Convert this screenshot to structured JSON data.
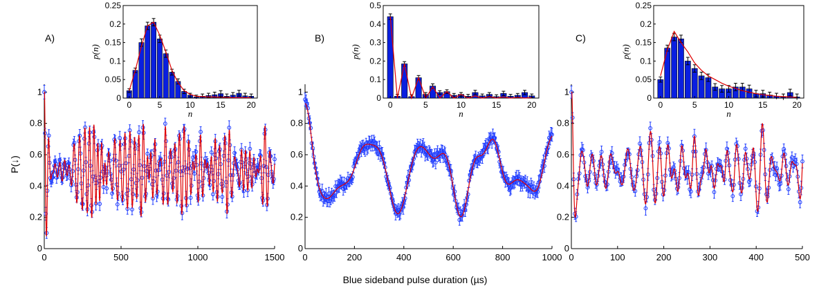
{
  "chart_data": [
    {
      "panel": "A)",
      "type": "scatter",
      "xlabel": "Blue sideband pulse duration (µs)",
      "ylabel": "P(↓)",
      "xlim": [
        0,
        1500
      ],
      "ylim": [
        0,
        1.05
      ],
      "xticks": [
        "0",
        "500",
        "1000",
        "1500"
      ],
      "yticks": [
        "0",
        "0.2",
        "0.4",
        "0.6",
        "0.8",
        "1"
      ],
      "colors": {
        "points": "#1f3cff",
        "fit": "#e00000"
      },
      "rabi": {
        "amps": [
          0.02,
          0.075,
          0.15,
          0.195,
          0.2,
          0.16,
          0.12,
          0.07,
          0.045,
          0.02,
          0.01,
          0.005,
          0.004,
          0.003,
          0.003,
          0.002,
          0.002,
          0.001,
          0.001,
          0.001,
          0.001
        ],
        "omega0": 0.096,
        "tmax": 1500,
        "npoints": 300,
        "mod": 0.07,
        "modPeriod": 720
      },
      "inset": {
        "type": "bar",
        "xlabel": "n",
        "ylabel": "p(n)",
        "xlim": [
          -1,
          21
        ],
        "ylim": [
          0,
          0.25
        ],
        "xticks": [
          "0",
          "5",
          "10",
          "15",
          "20"
        ],
        "yticks": [
          "0",
          "0.05",
          "0.1",
          "0.15",
          "0.2",
          "0.25"
        ],
        "values": [
          0.02,
          0.075,
          0.15,
          0.195,
          0.205,
          0.16,
          0.12,
          0.07,
          0.045,
          0.018,
          0.008,
          0.003,
          0.005,
          0.007,
          0.009,
          0.012,
          0.005,
          0.008,
          0.013,
          0.006,
          0.005
        ],
        "errors": [
          0.005,
          0.006,
          0.01,
          0.01,
          0.01,
          0.01,
          0.01,
          0.008,
          0.007,
          0.006,
          0.005,
          0.005,
          0.006,
          0.006,
          0.007,
          0.008,
          0.006,
          0.007,
          0.008,
          0.007,
          0.006
        ],
        "fit": [
          0.02,
          0.075,
          0.14,
          0.195,
          0.205,
          0.17,
          0.125,
          0.075,
          0.042,
          0.02,
          0.01,
          0.005,
          0.004,
          0.003,
          0.003,
          0.002,
          0.002,
          0.001,
          0.001,
          0.001,
          0.001
        ],
        "colors": {
          "bar": "#0a1fe0",
          "fit": "#e00000"
        }
      }
    },
    {
      "panel": "B)",
      "type": "scatter",
      "xlim": [
        0,
        1000
      ],
      "ylim": [
        0,
        1.05
      ],
      "xticks": [
        "0",
        "200",
        "400",
        "600",
        "800",
        "1000"
      ],
      "yticks": [
        "0",
        "0.2",
        "0.4",
        "0.6",
        "0.8",
        "1"
      ],
      "colors": {
        "points": "#1f3cff",
        "fit": "#e00000"
      },
      "rabi": {
        "amps": [
          0.43,
          0.0,
          0.18,
          0.0,
          0.11,
          0.0,
          0.06,
          0.0,
          0.03,
          0.0,
          0.02,
          0.0,
          0.01,
          0.0,
          0.005,
          0.0,
          0.004,
          0.0,
          0.003,
          0.0,
          0.002
        ],
        "omega0": 0.025,
        "tmax": 1000,
        "npoints": 260,
        "mod": 0.04,
        "modPeriod": 400
      },
      "inset": {
        "type": "bar",
        "xlabel": "n",
        "ylabel": "p(n)",
        "xlim": [
          -1,
          21
        ],
        "ylim": [
          0,
          0.5
        ],
        "xticks": [
          "0",
          "5",
          "10",
          "15",
          "20"
        ],
        "yticks": [
          "0",
          "0.1",
          "0.2",
          "0.3",
          "0.4",
          "0.5"
        ],
        "values": [
          0.44,
          0.01,
          0.185,
          0.008,
          0.11,
          0.02,
          0.065,
          0.03,
          0.035,
          0.015,
          0.02,
          0.01,
          0.03,
          0.012,
          0.02,
          0.008,
          0.025,
          0.01,
          0.015,
          0.03,
          0.012
        ],
        "errors": [
          0.015,
          0.01,
          0.012,
          0.01,
          0.012,
          0.01,
          0.012,
          0.01,
          0.01,
          0.01,
          0.01,
          0.01,
          0.012,
          0.01,
          0.01,
          0.01,
          0.012,
          0.01,
          0.01,
          0.012,
          0.01
        ],
        "fit": [
          0.44,
          0.0,
          0.185,
          0.0,
          0.11,
          0.0,
          0.06,
          0.0,
          0.035,
          0.0,
          0.02,
          0.0,
          0.012,
          0.0,
          0.008,
          0.0,
          0.006,
          0.0,
          0.004,
          0.0,
          0.003
        ],
        "colors": {
          "bar": "#0a1fe0",
          "fit": "#e00000"
        }
      }
    },
    {
      "panel": "C)",
      "type": "scatter",
      "xlim": [
        0,
        500
      ],
      "ylim": [
        0,
        1.05
      ],
      "xticks": [
        "0",
        "100",
        "200",
        "300",
        "400",
        "500"
      ],
      "yticks": [
        "0",
        "0.2",
        "0.4",
        "0.6",
        "0.8",
        "1"
      ],
      "colors": {
        "points": "#1f3cff",
        "fit": "#e00000"
      },
      "rabi": {
        "amps": [
          0.05,
          0.135,
          0.175,
          0.16,
          0.12,
          0.09,
          0.07,
          0.055,
          0.045,
          0.035,
          0.03,
          0.025,
          0.022,
          0.018,
          0.015,
          0.012,
          0.01,
          0.008,
          0.007,
          0.006,
          0.005
        ],
        "omega0": 0.15,
        "tmax": 500,
        "npoints": 200,
        "mod": 0.1,
        "modPeriod": 240
      },
      "inset": {
        "type": "bar",
        "xlabel": "n",
        "ylabel": "p(n)",
        "xlim": [
          -1,
          21
        ],
        "ylim": [
          0,
          0.25
        ],
        "xticks": [
          "0",
          "5",
          "10",
          "15",
          "20"
        ],
        "yticks": [
          "0",
          "0.05",
          "0.1",
          "0.15",
          "0.2",
          "0.25"
        ],
        "values": [
          0.05,
          0.135,
          0.165,
          0.16,
          0.1,
          0.08,
          0.06,
          0.055,
          0.03,
          0.025,
          0.025,
          0.03,
          0.03,
          0.025,
          0.012,
          0.012,
          0.008,
          0.005,
          0.003,
          0.015,
          0.003
        ],
        "errors": [
          0.007,
          0.008,
          0.01,
          0.01,
          0.01,
          0.01,
          0.01,
          0.01,
          0.009,
          0.009,
          0.009,
          0.01,
          0.01,
          0.01,
          0.009,
          0.009,
          0.008,
          0.008,
          0.008,
          0.009,
          0.008
        ],
        "fit": [
          0.06,
          0.13,
          0.18,
          0.15,
          0.125,
          0.095,
          0.075,
          0.06,
          0.05,
          0.04,
          0.032,
          0.026,
          0.02,
          0.016,
          0.012,
          0.009,
          0.007,
          0.005,
          0.004,
          0.003,
          0.002
        ],
        "colors": {
          "bar": "#0a1fe0",
          "fit": "#e00000"
        }
      }
    }
  ]
}
